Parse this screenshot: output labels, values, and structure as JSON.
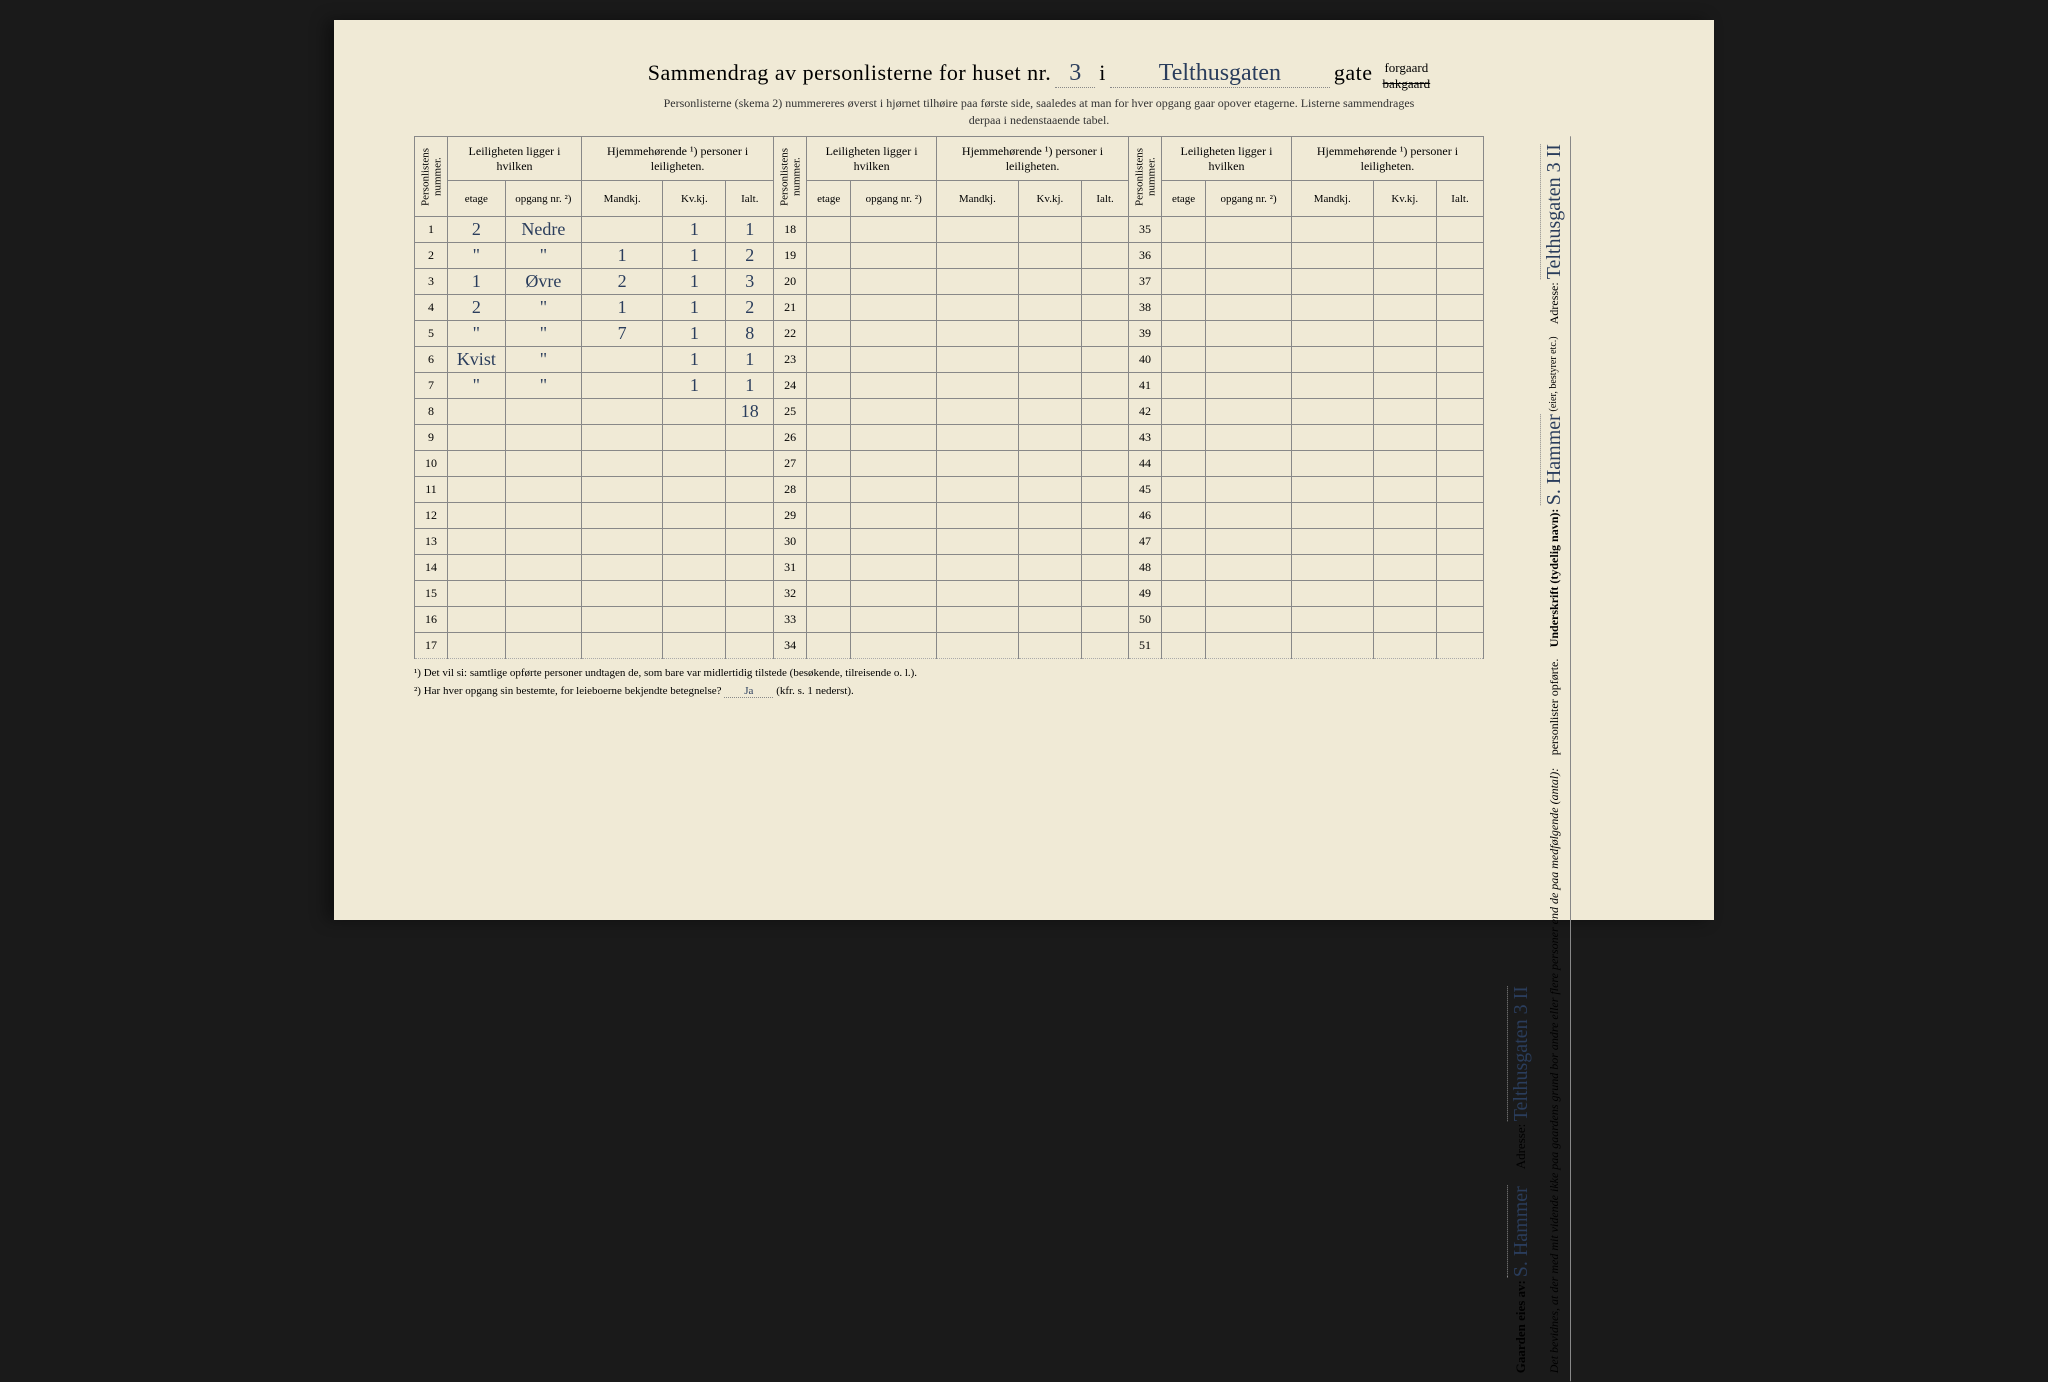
{
  "header": {
    "title_prefix": "Sammendrag av personlisterne for huset nr.",
    "house_number": "3",
    "i_word": "i",
    "street_name": "Telthusgaten",
    "gate_word": "gate",
    "forgaard": "forgaard",
    "bakgaard": "bakgaard",
    "subtitle1": "Personlisterne (skema 2) nummereres øverst i hjørnet tilhøire paa første side, saaledes at man for hver opgang gaar opover etagerne.  Listerne sammendrages",
    "subtitle2": "derpaa i nedenstaaende tabel."
  },
  "columns": {
    "personlistens_nummer": "Personlistens nummer.",
    "leiligheten_group": "Leiligheten ligger i hvilken",
    "hjemme_group": "Hjemmehørende ¹) personer i leiligheten.",
    "etage": "etage",
    "opgang": "opgang nr. ²)",
    "mandkj": "Mandkj.",
    "kvkj": "Kv.kj.",
    "ialt": "Ialt."
  },
  "rows_block1": [
    {
      "n": "1",
      "etage": "2",
      "opgang": "Nedre",
      "m": "",
      "k": "1",
      "i": "1"
    },
    {
      "n": "2",
      "etage": "\"",
      "opgang": "\"",
      "m": "1",
      "k": "1",
      "i": "2"
    },
    {
      "n": "3",
      "etage": "1",
      "opgang": "Øvre",
      "m": "2",
      "k": "1",
      "i": "3"
    },
    {
      "n": "4",
      "etage": "2",
      "opgang": "\"",
      "m": "1",
      "k": "1",
      "i": "2"
    },
    {
      "n": "5",
      "etage": "\"",
      "opgang": "\"",
      "m": "7",
      "k": "1",
      "i": "8"
    },
    {
      "n": "6",
      "etage": "Kvist",
      "opgang": "\"",
      "m": "",
      "k": "1",
      "i": "1"
    },
    {
      "n": "7",
      "etage": "\"",
      "opgang": "\"",
      "m": "",
      "k": "1",
      "i": "1"
    },
    {
      "n": "8",
      "etage": "",
      "opgang": "",
      "m": "",
      "k": "",
      "i": "18"
    },
    {
      "n": "9",
      "etage": "",
      "opgang": "",
      "m": "",
      "k": "",
      "i": ""
    },
    {
      "n": "10",
      "etage": "",
      "opgang": "",
      "m": "",
      "k": "",
      "i": ""
    },
    {
      "n": "11",
      "etage": "",
      "opgang": "",
      "m": "",
      "k": "",
      "i": ""
    },
    {
      "n": "12",
      "etage": "",
      "opgang": "",
      "m": "",
      "k": "",
      "i": ""
    },
    {
      "n": "13",
      "etage": "",
      "opgang": "",
      "m": "",
      "k": "",
      "i": ""
    },
    {
      "n": "14",
      "etage": "",
      "opgang": "",
      "m": "",
      "k": "",
      "i": ""
    },
    {
      "n": "15",
      "etage": "",
      "opgang": "",
      "m": "",
      "k": "",
      "i": ""
    },
    {
      "n": "16",
      "etage": "",
      "opgang": "",
      "m": "",
      "k": "",
      "i": ""
    },
    {
      "n": "17",
      "etage": "",
      "opgang": "",
      "m": "",
      "k": "",
      "i": ""
    }
  ],
  "rows_block2_start": 18,
  "rows_block2_end": 34,
  "rows_block3_start": 35,
  "rows_block3_end": 51,
  "footnotes": {
    "f1": "¹)  Det vil si: samtlige opførte personer undtagen de, som bare var midlertidig tilstede (besøkende, tilreisende o. l.).",
    "f2_q": "²)  Har hver opgang sin bestemte, for leieboerne bekjendte betegnelse?",
    "f2_a": "Ja",
    "f2_suffix": "(kfr. s. 1 nederst)."
  },
  "right": {
    "attest": "Det bevidnes, at der med mit vidende ikke paa gaardens grund bor andre eller flere personer end de paa medfølgende (antal):",
    "personlister": "personlister opførte.",
    "underskrift_label": "Underskrift (tydelig navn):",
    "underskrift_value": "S. Hammer",
    "eier_note": "(eier, bestyrer etc.)",
    "adresse_label": "Adresse:",
    "adresse_value": "Telthusgaten 3 II"
  },
  "owner": {
    "label": "Gaarden eies av:",
    "name": "S. Hammer",
    "adresse_label": "Adresse:",
    "adresse_value": "Telthusgaten 3 II"
  },
  "colors": {
    "paper": "#f0ead6",
    "ink_print": "#333333",
    "ink_hand": "#2a3d5c",
    "border": "#888888"
  }
}
